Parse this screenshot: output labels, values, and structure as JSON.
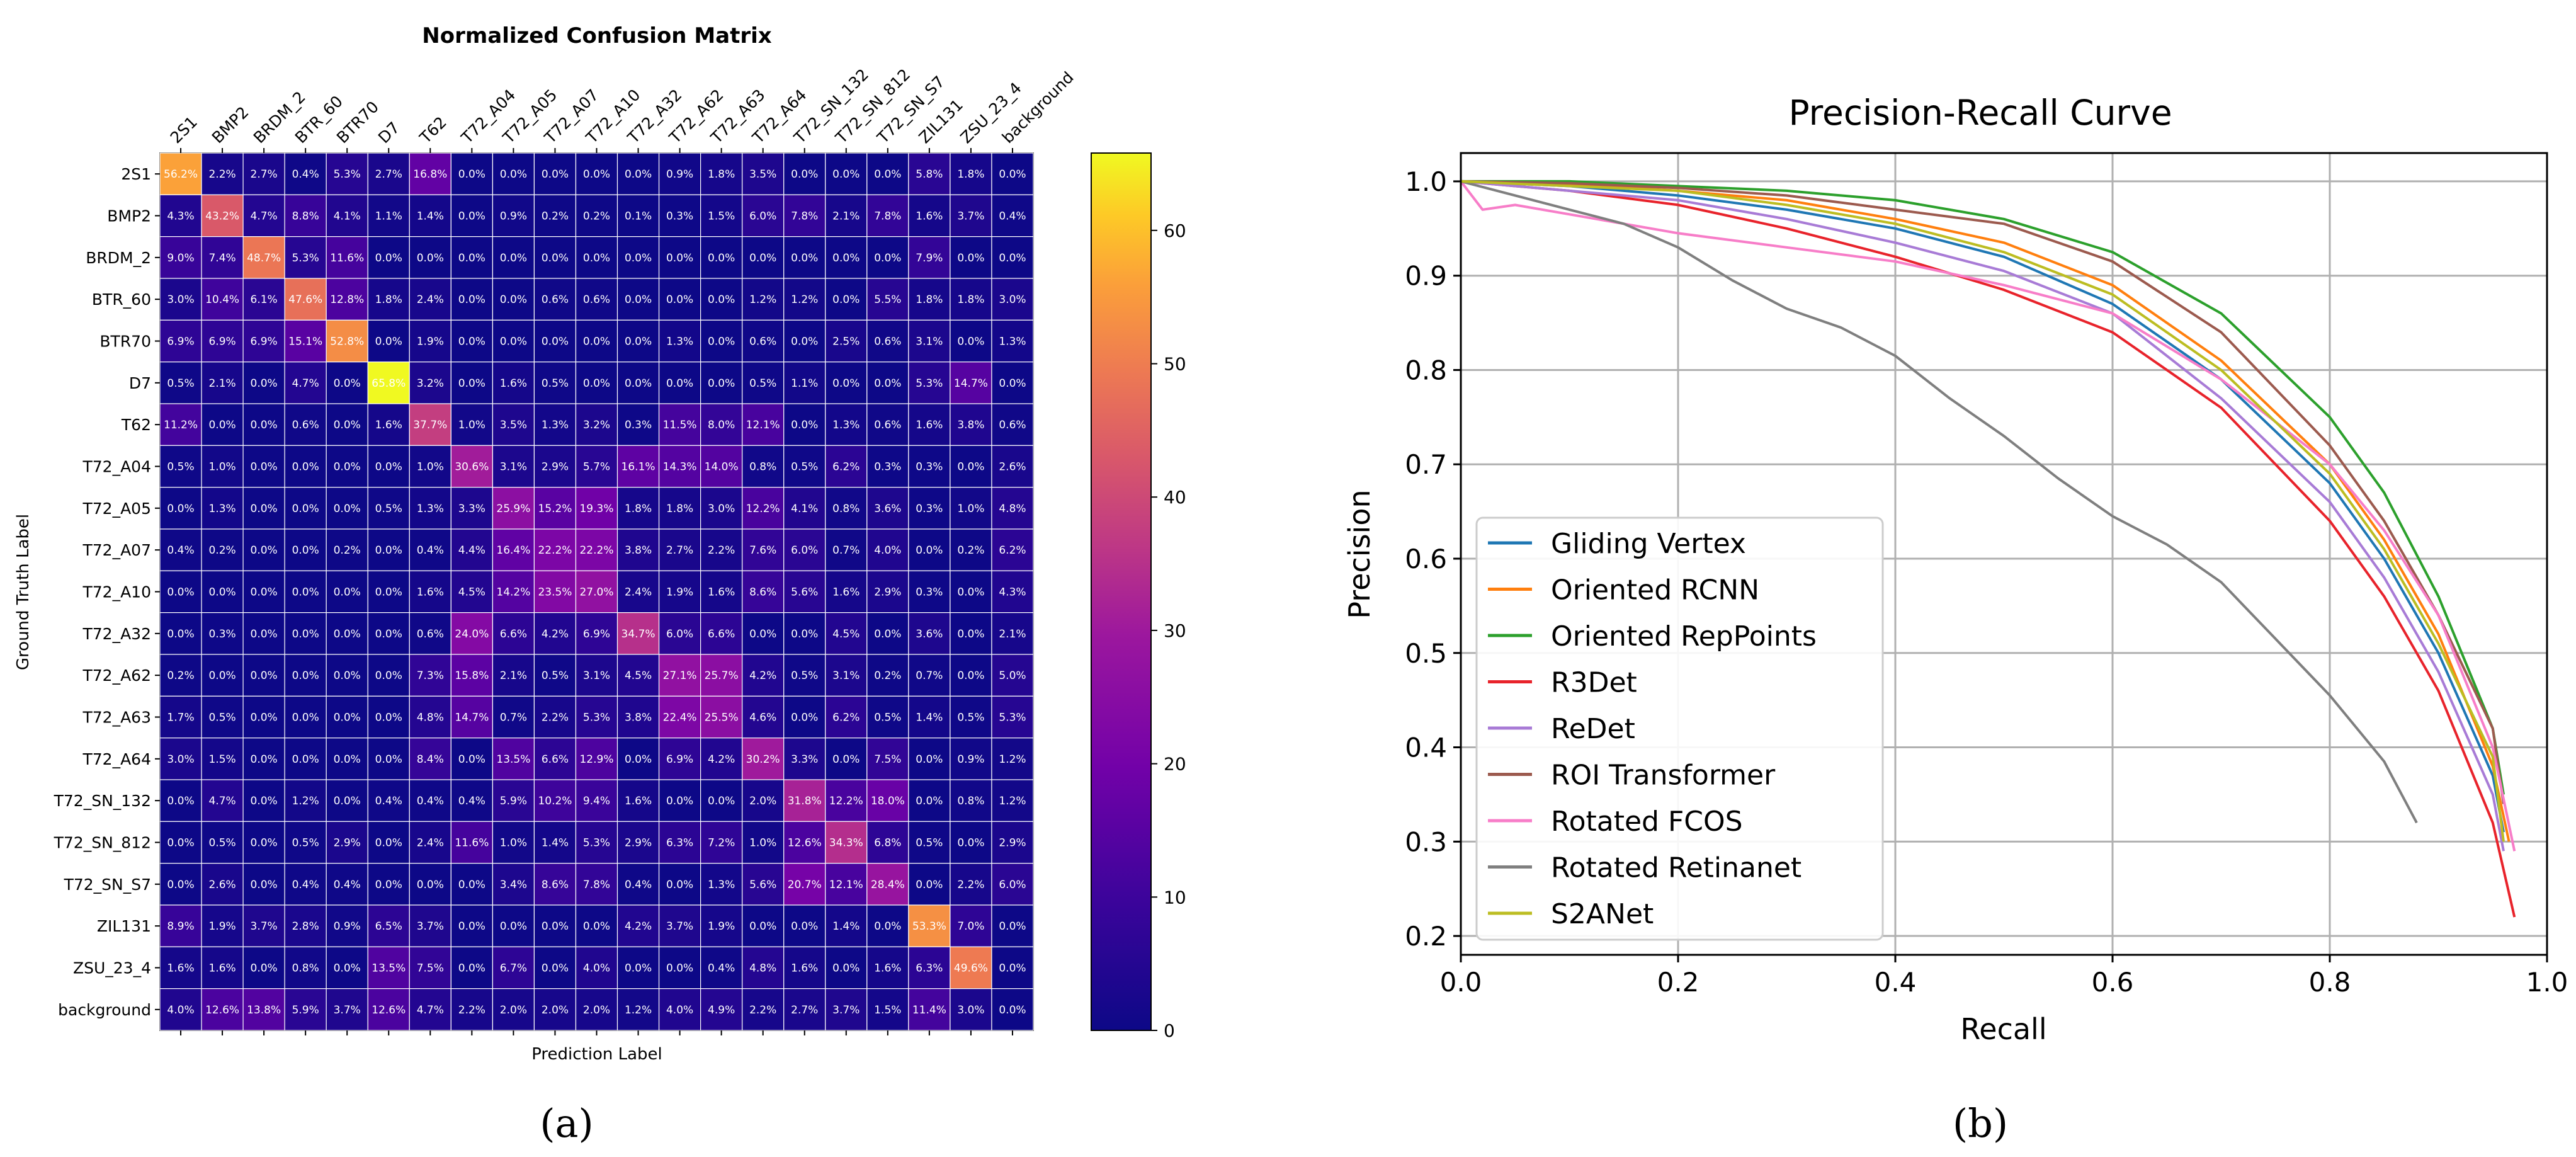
{
  "chart_data": [
    {
      "type": "heatmap",
      "title": "Normalized Confusion Matrix",
      "xlabel": "Prediction Label",
      "ylabel": "Ground Truth Label",
      "panel_label": "(a)",
      "row_labels": [
        "2S1",
        "BMP2",
        "BRDM_2",
        "BTR_60",
        "BTR70",
        "D7",
        "T62",
        "T72_A04",
        "T72_A05",
        "T72_A07",
        "T72_A10",
        "T72_A32",
        "T72_A62",
        "T72_A63",
        "T72_A64",
        "T72_SN_132",
        "T72_SN_812",
        "T72_SN_S7",
        "ZIL131",
        "ZSU_23_4",
        "background"
      ],
      "col_labels": [
        "2S1",
        "BMP2",
        "BRDM_2",
        "BTR_60",
        "BTR70",
        "D7",
        "T62",
        "T72_A04",
        "T72_A05",
        "T72_A07",
        "T72_A10",
        "T72_A32",
        "T72_A62",
        "T72_A63",
        "T72_A64",
        "T72_SN_132",
        "T72_SN_812",
        "T72_SN_S7",
        "ZIL131",
        "ZSU_23_4",
        "background"
      ],
      "values": [
        [
          56.2,
          2.2,
          2.7,
          0.4,
          5.3,
          2.7,
          16.8,
          0.0,
          0.0,
          0.0,
          0.0,
          0.0,
          0.9,
          1.8,
          3.5,
          0.0,
          0.0,
          0.0,
          5.8,
          1.8,
          0.0
        ],
        [
          4.3,
          43.2,
          4.7,
          8.8,
          4.1,
          1.1,
          1.4,
          0.0,
          0.9,
          0.2,
          0.2,
          0.1,
          0.3,
          1.5,
          6.0,
          7.8,
          2.1,
          7.8,
          1.6,
          3.7,
          0.4
        ],
        [
          9.0,
          7.4,
          48.7,
          5.3,
          11.6,
          0.0,
          0.0,
          0.0,
          0.0,
          0.0,
          0.0,
          0.0,
          0.0,
          0.0,
          0.0,
          0.0,
          0.0,
          0.0,
          7.9,
          0.0,
          0.0
        ],
        [
          3.0,
          10.4,
          6.1,
          47.6,
          12.8,
          1.8,
          2.4,
          0.0,
          0.0,
          0.6,
          0.6,
          0.0,
          0.0,
          0.0,
          1.2,
          1.2,
          0.0,
          5.5,
          1.8,
          1.8,
          3.0
        ],
        [
          6.9,
          6.9,
          6.9,
          15.1,
          52.8,
          0.0,
          1.9,
          0.0,
          0.0,
          0.0,
          0.0,
          0.0,
          1.3,
          0.0,
          0.6,
          0.0,
          2.5,
          0.6,
          3.1,
          0.0,
          1.3
        ],
        [
          0.5,
          2.1,
          0.0,
          4.7,
          0.0,
          65.8,
          3.2,
          0.0,
          1.6,
          0.5,
          0.0,
          0.0,
          0.0,
          0.0,
          0.5,
          1.1,
          0.0,
          0.0,
          5.3,
          14.7,
          0.0
        ],
        [
          11.2,
          0.0,
          0.0,
          0.6,
          0.0,
          1.6,
          37.7,
          1.0,
          3.5,
          1.3,
          3.2,
          0.3,
          11.5,
          8.0,
          12.1,
          0.0,
          1.3,
          0.6,
          1.6,
          3.8,
          0.6
        ],
        [
          0.5,
          1.0,
          0.0,
          0.0,
          0.0,
          0.0,
          1.0,
          30.6,
          3.1,
          2.9,
          5.7,
          16.1,
          14.3,
          14.0,
          0.8,
          0.5,
          6.2,
          0.3,
          0.3,
          0.0,
          2.6
        ],
        [
          0.0,
          1.3,
          0.0,
          0.0,
          0.0,
          0.5,
          1.3,
          3.3,
          25.9,
          15.2,
          19.3,
          1.8,
          1.8,
          3.0,
          12.2,
          4.1,
          0.8,
          3.6,
          0.3,
          1.0,
          4.8
        ],
        [
          0.4,
          0.2,
          0.0,
          0.0,
          0.2,
          0.0,
          0.4,
          4.4,
          16.4,
          22.2,
          22.2,
          3.8,
          2.7,
          2.2,
          7.6,
          6.0,
          0.7,
          4.0,
          0.0,
          0.2,
          6.2
        ],
        [
          0.0,
          0.0,
          0.0,
          0.0,
          0.0,
          0.0,
          1.6,
          4.5,
          14.2,
          23.5,
          27.0,
          2.4,
          1.9,
          1.6,
          8.6,
          5.6,
          1.6,
          2.9,
          0.3,
          0.0,
          4.3
        ],
        [
          0.0,
          0.3,
          0.0,
          0.0,
          0.0,
          0.0,
          0.6,
          24.0,
          6.6,
          4.2,
          6.9,
          34.7,
          6.0,
          6.6,
          0.0,
          0.0,
          4.5,
          0.0,
          3.6,
          0.0,
          2.1
        ],
        [
          0.2,
          0.0,
          0.0,
          0.0,
          0.0,
          0.0,
          7.3,
          15.8,
          2.1,
          0.5,
          3.1,
          4.5,
          27.1,
          25.7,
          4.2,
          0.5,
          3.1,
          0.2,
          0.7,
          0.0,
          5.0
        ],
        [
          1.7,
          0.5,
          0.0,
          0.0,
          0.0,
          0.0,
          4.8,
          14.7,
          0.7,
          2.2,
          5.3,
          3.8,
          22.4,
          25.5,
          4.6,
          0.0,
          6.2,
          0.5,
          1.4,
          0.5,
          5.3
        ],
        [
          3.0,
          1.5,
          0.0,
          0.0,
          0.0,
          0.0,
          8.4,
          0.0,
          13.5,
          6.6,
          12.9,
          0.0,
          6.9,
          4.2,
          30.2,
          3.3,
          0.0,
          7.5,
          0.0,
          0.9,
          1.2
        ],
        [
          0.0,
          4.7,
          0.0,
          1.2,
          0.0,
          0.4,
          0.4,
          0.4,
          5.9,
          10.2,
          9.4,
          1.6,
          0.0,
          0.0,
          2.0,
          31.8,
          12.2,
          18.0,
          0.0,
          0.8,
          1.2
        ],
        [
          0.0,
          0.5,
          0.0,
          0.5,
          2.9,
          0.0,
          2.4,
          11.6,
          1.0,
          1.4,
          5.3,
          2.9,
          6.3,
          7.2,
          1.0,
          12.6,
          34.3,
          6.8,
          0.5,
          0.0,
          2.9
        ],
        [
          0.0,
          2.6,
          0.0,
          0.4,
          0.4,
          0.0,
          0.0,
          0.0,
          3.4,
          8.6,
          7.8,
          0.4,
          0.0,
          1.3,
          5.6,
          20.7,
          12.1,
          28.4,
          0.0,
          2.2,
          6.0
        ],
        [
          8.9,
          1.9,
          3.7,
          2.8,
          0.9,
          6.5,
          3.7,
          0.0,
          0.0,
          0.0,
          0.0,
          4.2,
          3.7,
          1.9,
          0.0,
          0.0,
          1.4,
          0.0,
          53.3,
          7.0,
          0.0
        ],
        [
          1.6,
          1.6,
          0.0,
          0.8,
          0.0,
          13.5,
          7.5,
          0.0,
          6.7,
          0.0,
          4.0,
          0.0,
          0.0,
          0.4,
          4.8,
          1.6,
          0.0,
          1.6,
          6.3,
          49.6,
          0.0
        ],
        [
          4.0,
          12.6,
          13.8,
          5.9,
          3.7,
          12.6,
          4.7,
          2.2,
          2.0,
          2.0,
          2.0,
          1.2,
          4.0,
          4.9,
          2.2,
          2.7,
          3.7,
          1.5,
          11.4,
          3.0,
          0.0
        ]
      ],
      "colorbar": {
        "min": 0,
        "max": 65.8,
        "ticks": [
          0,
          10,
          20,
          30,
          40,
          50,
          60
        ],
        "colormap": "plasma"
      }
    },
    {
      "type": "line",
      "title": "Precision-Recall Curve",
      "xlabel": "Recall",
      "ylabel": "Precision",
      "panel_label": "(b)",
      "xlim": [
        0.0,
        1.0
      ],
      "ylim": [
        0.18,
        1.03
      ],
      "xticks": [
        "0.0",
        "0.2",
        "0.4",
        "0.6",
        "0.8",
        "1.0"
      ],
      "yticks": [
        "0.2",
        "0.3",
        "0.4",
        "0.5",
        "0.6",
        "0.7",
        "0.8",
        "0.9",
        "1.0"
      ],
      "grid": true,
      "legend_position": "lower-left",
      "series": [
        {
          "name": "Gliding Vertex",
          "color": "#1f77b4",
          "x": [
            0,
            0.1,
            0.2,
            0.3,
            0.4,
            0.5,
            0.6,
            0.7,
            0.8,
            0.85,
            0.9,
            0.95,
            0.96
          ],
          "y": [
            1.0,
            0.995,
            0.985,
            0.97,
            0.95,
            0.92,
            0.87,
            0.79,
            0.68,
            0.6,
            0.5,
            0.37,
            0.31
          ]
        },
        {
          "name": "Oriented RCNN",
          "color": "#ff7f0e",
          "x": [
            0,
            0.1,
            0.2,
            0.3,
            0.4,
            0.5,
            0.6,
            0.7,
            0.8,
            0.85,
            0.9,
            0.95,
            0.965
          ],
          "y": [
            1.0,
            0.997,
            0.99,
            0.98,
            0.96,
            0.935,
            0.89,
            0.81,
            0.7,
            0.62,
            0.52,
            0.38,
            0.3
          ]
        },
        {
          "name": "Oriented RepPoints",
          "color": "#2ca02c",
          "x": [
            0,
            0.1,
            0.2,
            0.3,
            0.4,
            0.5,
            0.6,
            0.7,
            0.8,
            0.85,
            0.9,
            0.95,
            0.96
          ],
          "y": [
            1.0,
            1.0,
            0.995,
            0.99,
            0.98,
            0.96,
            0.925,
            0.86,
            0.75,
            0.67,
            0.56,
            0.42,
            0.35
          ]
        },
        {
          "name": "R3Det",
          "color": "#e8232b",
          "x": [
            0,
            0.1,
            0.2,
            0.3,
            0.4,
            0.5,
            0.6,
            0.7,
            0.8,
            0.85,
            0.9,
            0.95,
            0.97
          ],
          "y": [
            1.0,
            0.99,
            0.975,
            0.95,
            0.92,
            0.885,
            0.84,
            0.76,
            0.64,
            0.56,
            0.46,
            0.32,
            0.22
          ]
        },
        {
          "name": "ReDet",
          "color": "#a87bd6",
          "x": [
            0,
            0.1,
            0.2,
            0.3,
            0.4,
            0.5,
            0.6,
            0.7,
            0.8,
            0.85,
            0.9,
            0.95,
            0.96
          ],
          "y": [
            1.0,
            0.99,
            0.98,
            0.96,
            0.935,
            0.905,
            0.86,
            0.77,
            0.66,
            0.58,
            0.48,
            0.35,
            0.29
          ]
        },
        {
          "name": "ROI Transformer",
          "color": "#9c5a4e",
          "x": [
            0,
            0.1,
            0.2,
            0.3,
            0.4,
            0.5,
            0.6,
            0.7,
            0.8,
            0.85,
            0.9,
            0.95,
            0.96
          ],
          "y": [
            1.0,
            0.998,
            0.993,
            0.985,
            0.97,
            0.955,
            0.915,
            0.84,
            0.72,
            0.64,
            0.54,
            0.42,
            0.34
          ]
        },
        {
          "name": "Rotated FCOS",
          "color": "#f77dc8",
          "x": [
            0,
            0.02,
            0.05,
            0.1,
            0.2,
            0.3,
            0.4,
            0.5,
            0.6,
            0.7,
            0.8,
            0.85,
            0.9,
            0.95,
            0.97
          ],
          "y": [
            1.0,
            0.97,
            0.975,
            0.965,
            0.945,
            0.93,
            0.915,
            0.89,
            0.86,
            0.79,
            0.7,
            0.63,
            0.54,
            0.4,
            0.29
          ]
        },
        {
          "name": "Rotated Retinanet",
          "color": "#7f7f7f",
          "x": [
            0,
            0.05,
            0.1,
            0.15,
            0.2,
            0.25,
            0.3,
            0.35,
            0.4,
            0.45,
            0.5,
            0.55,
            0.6,
            0.65,
            0.7,
            0.75,
            0.8,
            0.85,
            0.88
          ],
          "y": [
            1.0,
            0.985,
            0.97,
            0.955,
            0.93,
            0.895,
            0.865,
            0.845,
            0.815,
            0.77,
            0.73,
            0.685,
            0.645,
            0.615,
            0.575,
            0.515,
            0.455,
            0.385,
            0.32
          ]
        },
        {
          "name": "S2ANet",
          "color": "#bcbd22",
          "x": [
            0,
            0.1,
            0.2,
            0.3,
            0.4,
            0.5,
            0.6,
            0.7,
            0.8,
            0.85,
            0.9,
            0.95,
            0.96
          ],
          "y": [
            1.0,
            0.995,
            0.99,
            0.975,
            0.955,
            0.925,
            0.88,
            0.8,
            0.69,
            0.61,
            0.51,
            0.39,
            0.3
          ]
        }
      ]
    }
  ]
}
